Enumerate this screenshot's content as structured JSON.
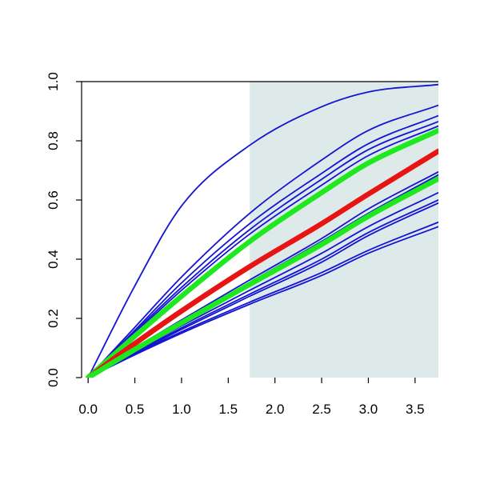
{
  "chart_data": {
    "type": "line",
    "title": "",
    "xlabel": "",
    "ylabel": "",
    "xlim": [
      -0.07,
      3.75
    ],
    "ylim": [
      0.0,
      1.0
    ],
    "x_ticks": [
      0.0,
      0.5,
      1.0,
      1.5,
      2.0,
      2.5,
      3.0,
      3.5
    ],
    "x_tick_labels": [
      "0.0",
      "0.5",
      "1.0",
      "1.5",
      "2.0",
      "2.5",
      "3.0",
      "3.5"
    ],
    "y_ticks": [
      0.0,
      0.2,
      0.4,
      0.6,
      0.8,
      1.0
    ],
    "y_tick_labels": [
      "0.0",
      "0.2",
      "0.4",
      "0.6",
      "0.8",
      "1.0"
    ],
    "grid": false,
    "legend": "none",
    "shaded_region": {
      "x_start": 1.73,
      "x_end": 3.75,
      "color": "#deeaea"
    },
    "colors": {
      "blue": "#1414d4",
      "green": "#1ee81e",
      "red": "#e81414"
    },
    "series": [
      {
        "color": "blue",
        "width": "thin",
        "points": [
          [
            0,
            0
          ],
          [
            0.5,
            0.31
          ],
          [
            1.0,
            0.58
          ],
          [
            1.73,
            0.785
          ],
          [
            2.5,
            0.915
          ],
          [
            3.0,
            0.965
          ],
          [
            3.75,
            0.99
          ]
        ]
      },
      {
        "color": "blue",
        "width": "thin",
        "points": [
          [
            0,
            0
          ],
          [
            0.5,
            0.17
          ],
          [
            1.0,
            0.34
          ],
          [
            1.73,
            0.555
          ],
          [
            2.5,
            0.735
          ],
          [
            3.0,
            0.835
          ],
          [
            3.75,
            0.92
          ]
        ]
      },
      {
        "color": "blue",
        "width": "thin",
        "points": [
          [
            0,
            0
          ],
          [
            0.5,
            0.16
          ],
          [
            1.0,
            0.32
          ],
          [
            1.73,
            0.52
          ],
          [
            2.5,
            0.69
          ],
          [
            3.0,
            0.79
          ],
          [
            3.75,
            0.885
          ]
        ]
      },
      {
        "color": "blue",
        "width": "thin",
        "points": [
          [
            0,
            0
          ],
          [
            0.5,
            0.155
          ],
          [
            1.0,
            0.305
          ],
          [
            1.73,
            0.5
          ],
          [
            2.5,
            0.67
          ],
          [
            3.0,
            0.77
          ],
          [
            3.75,
            0.865
          ]
        ]
      },
      {
        "color": "blue",
        "width": "thin",
        "points": [
          [
            0,
            0
          ],
          [
            0.5,
            0.15
          ],
          [
            1.0,
            0.295
          ],
          [
            1.73,
            0.485
          ],
          [
            2.5,
            0.65
          ],
          [
            3.0,
            0.75
          ],
          [
            3.75,
            0.85
          ]
        ]
      },
      {
        "color": "green",
        "width": "thick",
        "points": [
          [
            0,
            0
          ],
          [
            0.5,
            0.14
          ],
          [
            1.0,
            0.275
          ],
          [
            1.73,
            0.46
          ],
          [
            2.5,
            0.625
          ],
          [
            3.0,
            0.725
          ],
          [
            3.75,
            0.835
          ]
        ]
      },
      {
        "color": "red",
        "width": "thick",
        "points": [
          [
            0,
            0
          ],
          [
            0.5,
            0.115
          ],
          [
            1.0,
            0.225
          ],
          [
            1.73,
            0.375
          ],
          [
            2.5,
            0.52
          ],
          [
            3.0,
            0.62
          ],
          [
            3.75,
            0.765
          ]
        ]
      },
      {
        "color": "blue",
        "width": "thin",
        "points": [
          [
            0,
            0
          ],
          [
            0.5,
            0.1
          ],
          [
            1.0,
            0.195
          ],
          [
            1.73,
            0.33
          ],
          [
            2.5,
            0.47
          ],
          [
            3.0,
            0.57
          ],
          [
            3.75,
            0.695
          ]
        ]
      },
      {
        "color": "blue",
        "width": "thin",
        "points": [
          [
            0,
            0
          ],
          [
            0.5,
            0.097
          ],
          [
            1.0,
            0.19
          ],
          [
            1.73,
            0.322
          ],
          [
            2.5,
            0.46
          ],
          [
            3.0,
            0.555
          ],
          [
            3.75,
            0.685
          ]
        ]
      },
      {
        "color": "green",
        "width": "thick",
        "points": [
          [
            0,
            0
          ],
          [
            0.5,
            0.095
          ],
          [
            1.0,
            0.185
          ],
          [
            1.73,
            0.315
          ],
          [
            2.5,
            0.45
          ],
          [
            3.0,
            0.545
          ],
          [
            3.75,
            0.672
          ]
        ]
      },
      {
        "color": "blue",
        "width": "thin",
        "points": [
          [
            0,
            0
          ],
          [
            0.5,
            0.09
          ],
          [
            1.0,
            0.175
          ],
          [
            1.73,
            0.295
          ],
          [
            2.5,
            0.42
          ],
          [
            3.0,
            0.51
          ],
          [
            3.75,
            0.625
          ]
        ]
      },
      {
        "color": "blue",
        "width": "thin",
        "points": [
          [
            0,
            0
          ],
          [
            0.5,
            0.086
          ],
          [
            1.0,
            0.168
          ],
          [
            1.73,
            0.282
          ],
          [
            2.5,
            0.4
          ],
          [
            3.0,
            0.49
          ],
          [
            3.75,
            0.6
          ]
        ]
      },
      {
        "color": "blue",
        "width": "thin",
        "points": [
          [
            0,
            0
          ],
          [
            0.5,
            0.083
          ],
          [
            1.0,
            0.163
          ],
          [
            1.73,
            0.275
          ],
          [
            2.5,
            0.39
          ],
          [
            3.0,
            0.48
          ],
          [
            3.75,
            0.59
          ]
        ]
      },
      {
        "color": "blue",
        "width": "thin",
        "points": [
          [
            0,
            0
          ],
          [
            0.5,
            0.08
          ],
          [
            1.0,
            0.155
          ],
          [
            1.73,
            0.255
          ],
          [
            2.5,
            0.355
          ],
          [
            3.0,
            0.43
          ],
          [
            3.75,
            0.525
          ]
        ]
      },
      {
        "color": "blue",
        "width": "thin",
        "points": [
          [
            0,
            0
          ],
          [
            0.5,
            0.077
          ],
          [
            1.0,
            0.15
          ],
          [
            1.73,
            0.248
          ],
          [
            2.5,
            0.345
          ],
          [
            3.0,
            0.42
          ],
          [
            3.75,
            0.51
          ]
        ]
      }
    ]
  }
}
